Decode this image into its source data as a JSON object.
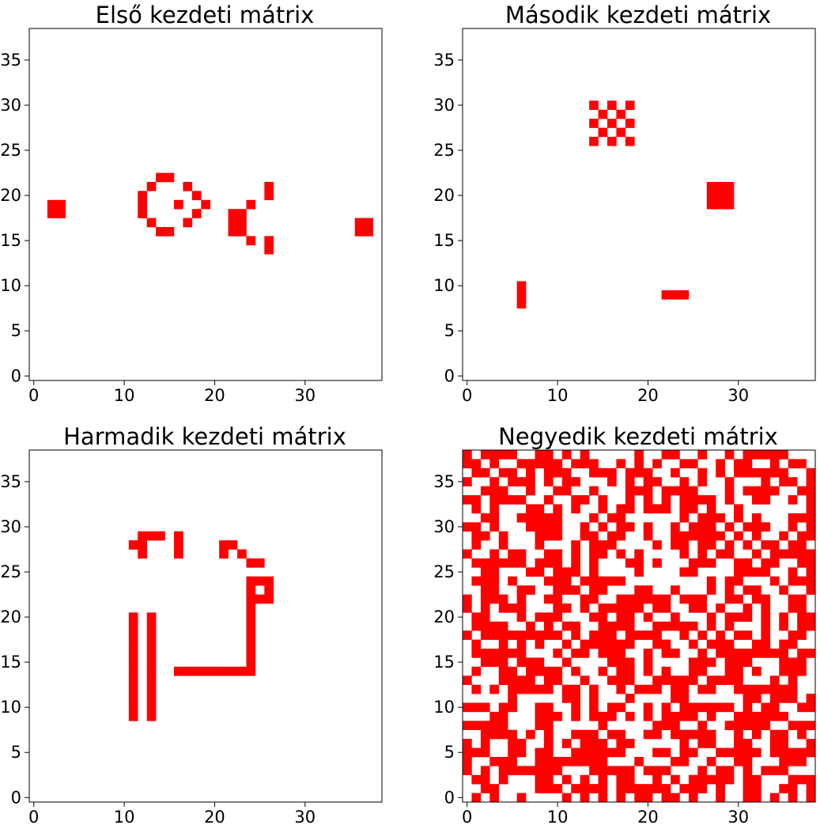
{
  "chart_data": [
    {
      "type": "heatmap",
      "title": "Első kezdeti mátrix",
      "xlabel": "",
      "ylabel": "",
      "xlim": [
        -0.5,
        38.5
      ],
      "ylim": [
        -0.5,
        38.5
      ],
      "xticks": [
        0,
        10,
        20,
        30
      ],
      "yticks": [
        0,
        5,
        10,
        15,
        20,
        25,
        30,
        35
      ],
      "grid": false,
      "colormap": {
        "0": "#ffffff",
        "1": "#ff0000"
      },
      "cells": [
        [
          2,
          18
        ],
        [
          2,
          19
        ],
        [
          3,
          18
        ],
        [
          3,
          19
        ],
        [
          12,
          18
        ],
        [
          12,
          19
        ],
        [
          12,
          20
        ],
        [
          13,
          17
        ],
        [
          13,
          21
        ],
        [
          14,
          16
        ],
        [
          14,
          22
        ],
        [
          15,
          16
        ],
        [
          15,
          22
        ],
        [
          16,
          19
        ],
        [
          17,
          17
        ],
        [
          17,
          21
        ],
        [
          18,
          18
        ],
        [
          18,
          20
        ],
        [
          19,
          19
        ],
        [
          22,
          16
        ],
        [
          22,
          17
        ],
        [
          22,
          18
        ],
        [
          23,
          16
        ],
        [
          23,
          17
        ],
        [
          23,
          18
        ],
        [
          24,
          15
        ],
        [
          24,
          19
        ],
        [
          26,
          14
        ],
        [
          26,
          15
        ],
        [
          26,
          20
        ],
        [
          26,
          21
        ],
        [
          36,
          16
        ],
        [
          36,
          17
        ],
        [
          37,
          16
        ],
        [
          37,
          17
        ]
      ]
    },
    {
      "type": "heatmap",
      "title": "Második kezdeti mátrix",
      "xlabel": "",
      "ylabel": "",
      "xlim": [
        -0.5,
        38.5
      ],
      "ylim": [
        -0.5,
        38.5
      ],
      "xticks": [
        0,
        10,
        20,
        30
      ],
      "yticks": [
        0,
        5,
        10,
        15,
        20,
        25,
        30,
        35
      ],
      "grid": false,
      "colormap": {
        "0": "#ffffff",
        "1": "#ff0000"
      },
      "cells": [
        [
          14,
          30
        ],
        [
          16,
          30
        ],
        [
          18,
          30
        ],
        [
          15,
          29
        ],
        [
          17,
          29
        ],
        [
          14,
          28
        ],
        [
          16,
          28
        ],
        [
          18,
          28
        ],
        [
          15,
          27
        ],
        [
          17,
          27
        ],
        [
          14,
          26
        ],
        [
          16,
          26
        ],
        [
          18,
          26
        ],
        [
          27,
          19
        ],
        [
          27,
          20
        ],
        [
          27,
          21
        ],
        [
          28,
          19
        ],
        [
          28,
          20
        ],
        [
          28,
          21
        ],
        [
          29,
          19
        ],
        [
          29,
          20
        ],
        [
          29,
          21
        ],
        [
          6,
          8
        ],
        [
          6,
          9
        ],
        [
          6,
          10
        ],
        [
          22,
          9
        ],
        [
          23,
          9
        ],
        [
          24,
          9
        ]
      ]
    },
    {
      "type": "heatmap",
      "title": "Harmadik kezdeti mátrix",
      "xlabel": "",
      "ylabel": "",
      "xlim": [
        -0.5,
        38.5
      ],
      "ylim": [
        -0.5,
        38.5
      ],
      "xticks": [
        0,
        10,
        20,
        30
      ],
      "yticks": [
        0,
        5,
        10,
        15,
        20,
        25,
        30,
        35
      ],
      "grid": false,
      "colormap": {
        "0": "#ffffff",
        "1": "#ff0000"
      },
      "cells": [
        [
          11,
          28
        ],
        [
          12,
          28
        ],
        [
          12,
          27
        ],
        [
          12,
          29
        ],
        [
          13,
          29
        ],
        [
          14,
          29
        ],
        [
          16,
          27
        ],
        [
          16,
          28
        ],
        [
          16,
          29
        ],
        [
          21,
          27
        ],
        [
          21,
          28
        ],
        [
          22,
          28
        ],
        [
          23,
          27
        ],
        [
          24,
          26
        ],
        [
          25,
          26
        ],
        [
          26,
          22
        ],
        [
          26,
          23
        ],
        [
          26,
          24
        ],
        [
          25,
          24
        ],
        [
          25,
          22
        ],
        [
          24,
          14
        ],
        [
          24,
          15
        ],
        [
          24,
          16
        ],
        [
          24,
          17
        ],
        [
          24,
          18
        ],
        [
          24,
          19
        ],
        [
          24,
          20
        ],
        [
          24,
          21
        ],
        [
          24,
          22
        ],
        [
          24,
          23
        ],
        [
          24,
          24
        ],
        [
          16,
          14
        ],
        [
          17,
          14
        ],
        [
          18,
          14
        ],
        [
          19,
          14
        ],
        [
          20,
          14
        ],
        [
          21,
          14
        ],
        [
          22,
          14
        ],
        [
          23,
          14
        ],
        [
          11,
          9
        ],
        [
          11,
          10
        ],
        [
          11,
          11
        ],
        [
          11,
          12
        ],
        [
          11,
          13
        ],
        [
          11,
          14
        ],
        [
          11,
          15
        ],
        [
          11,
          16
        ],
        [
          11,
          17
        ],
        [
          11,
          18
        ],
        [
          11,
          19
        ],
        [
          11,
          20
        ],
        [
          13,
          9
        ],
        [
          13,
          10
        ],
        [
          13,
          11
        ],
        [
          13,
          12
        ],
        [
          13,
          13
        ],
        [
          13,
          14
        ],
        [
          13,
          15
        ],
        [
          13,
          16
        ],
        [
          13,
          17
        ],
        [
          13,
          18
        ],
        [
          13,
          19
        ],
        [
          13,
          20
        ]
      ]
    },
    {
      "type": "heatmap",
      "title": "Negyedik kezdeti mátrix",
      "xlabel": "",
      "ylabel": "",
      "xlim": [
        -0.5,
        38.5
      ],
      "ylim": [
        -0.5,
        38.5
      ],
      "xticks": [
        0,
        10,
        20,
        30
      ],
      "yticks": [
        0,
        5,
        10,
        15,
        20,
        25,
        30,
        35
      ],
      "grid": false,
      "colormap": {
        "0": "#ffffff",
        "1": "#ff0000"
      },
      "grid_rows_top_to_bottom": [
        "101111001101010000010011001001011111000",
        "110100111110111001010100110010110010110",
        "011011010111001110111001001010111111001",
        "100101110101100010101100101001000101101",
        "001110010011001000111011110001011110011",
        "110111100100110100101010111101001100101",
        "010100011010100101101110110100100000001",
        "001100111110001011000000101110101000111",
        "110100011110010101101001011101011100101",
        "011010001110011011001001111110101001011",
        "010010001000101110000101101101010110110",
        "100101100110101101010000101011001011111",
        "011111101110101000110100011100110110011",
        "001100011011101000010000110000111100101",
        "011101000111011111000000000101100010111",
        "001100110011101100011001000101011001001",
        "101110100110011001111110111001101100110",
        "101011100011010111110110011010010100110",
        "011000101110001101101001000101110101011",
        "011110010101100111100111110101000101011",
        "101111111110101110111100101010110100110",
        "010010101001011111100110010111001101100",
        "011111100010110111001011001011111111011",
        "001110111001000011101000011101110001110",
        "010011011110100101101010011001101001110",
        "100011110110010011100111110111100010100",
        "010101111101101001011101101100111111100",
        "000001000001101000100001100000011011101",
        "111011001100101011001010111111010110011",
        "000110001110101110101011110100111111000",
        "111110001100000100000111001001111100111",
        "001111010100111011001101111100101011010",
        "101001100101011101100000101100110011001",
        "111001101100111111000110110011111011111",
        "100111001111111100010001100100110001110",
        "101011111110001111101110001011010111000",
        "011010001101010101100101011111011000111",
        "001100001110111101111110111010011001101",
        "010100100001010101011011010010011010101"
      ]
    }
  ]
}
